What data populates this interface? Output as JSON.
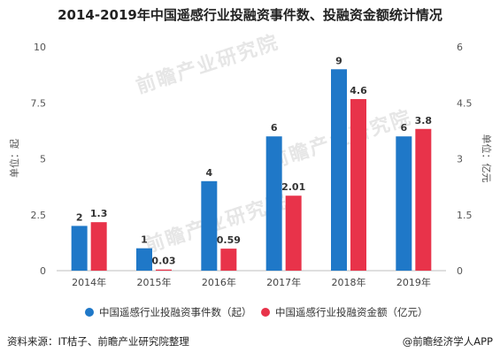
{
  "chart_data": {
    "type": "bar",
    "title": "2014-2019年中国遥感行业投融资事件数、投融资金额统计情况",
    "categories": [
      "2014年",
      "2015年",
      "2016年",
      "2017年",
      "2018年",
      "2019年"
    ],
    "series": [
      {
        "name": "中国遥感行业投融资事件数（起）",
        "values": [
          2,
          1,
          4,
          6,
          9,
          6
        ],
        "labels": [
          "2",
          "1",
          "4",
          "6",
          "9",
          "6"
        ],
        "axis": "left",
        "color": "#1f78c8"
      },
      {
        "name": "中国遥感行业投融资金额（亿元）",
        "values": [
          1.3,
          0.03,
          0.59,
          2.01,
          4.6,
          3.8
        ],
        "labels": [
          "1.3",
          "0.03",
          "0.59",
          "2.01",
          "4.6",
          "3.8"
        ],
        "axis": "right",
        "color": "#e8334a"
      }
    ],
    "ylabel": "单位：起",
    "ylabel_right": "单位：亿元",
    "ylim": [
      0,
      10
    ],
    "ylim_right": [
      0,
      6
    ],
    "yticks": [
      "0",
      "2.5",
      "5",
      "7.5",
      "10"
    ],
    "yticks_right": [
      "0",
      "1.5",
      "3",
      "4.5",
      "6"
    ],
    "grid": false,
    "legend_position": "bottom"
  },
  "footer": {
    "source": "资料来源：IT桔子、前瞻产业研究院整理",
    "brand": "@前瞻经济学人APP"
  },
  "watermark": {
    "text": "前瞻产业研究院"
  }
}
